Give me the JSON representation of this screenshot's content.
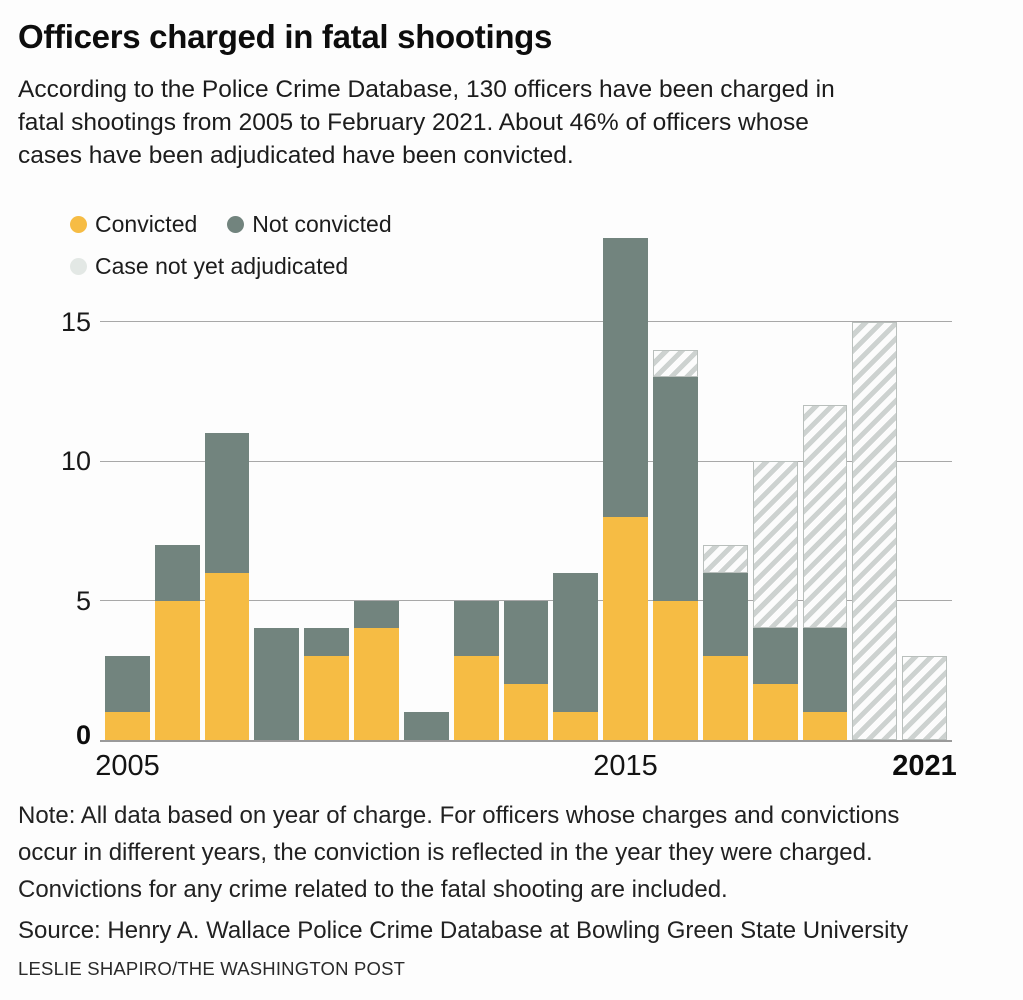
{
  "header": {
    "title": "Officers charged in fatal shootings",
    "subtitle_lines": [
      "According to the Police Crime Database, 130 officers have been charged in",
      "fatal shootings from 2005 to February 2021. About 46% of officers whose",
      "cases have been adjudicated have been convicted."
    ]
  },
  "legend": {
    "items": [
      {
        "label": "Convicted",
        "key": "convicted"
      },
      {
        "label": "Not convicted",
        "key": "not_convicted"
      },
      {
        "label": "Case not yet adjudicated",
        "key": "pending"
      }
    ]
  },
  "colors": {
    "convicted": "#F6BC44",
    "not_convicted": "#72847E",
    "pending_bg": "#FCFCFC",
    "pending_stripe": "#CDD2D0",
    "pending_border": "#B9BFBC",
    "pending_legend_dot": "#E3E8E5",
    "gridline": "#A8A8A8",
    "axis": "#9A9A9A"
  },
  "chart_data": {
    "type": "bar",
    "stacked": true,
    "title": "Officers charged in fatal shootings",
    "x": [
      2005,
      2006,
      2007,
      2008,
      2009,
      2010,
      2011,
      2012,
      2013,
      2014,
      2015,
      2016,
      2017,
      2018,
      2019,
      2020,
      2021
    ],
    "series": [
      {
        "name": "Convicted",
        "key": "convicted",
        "values": [
          1,
          5,
          6,
          0,
          3,
          4,
          0,
          3,
          2,
          1,
          8,
          5,
          3,
          2,
          1,
          0,
          0
        ]
      },
      {
        "name": "Not convicted",
        "key": "not_convicted",
        "values": [
          2,
          2,
          5,
          4,
          1,
          1,
          1,
          2,
          3,
          5,
          10,
          8,
          3,
          2,
          3,
          0,
          0
        ]
      },
      {
        "name": "Case not yet adjudicated",
        "key": "pending",
        "values": [
          0,
          0,
          0,
          0,
          0,
          0,
          0,
          0,
          0,
          0,
          0,
          1,
          1,
          6,
          8,
          15,
          3
        ]
      }
    ],
    "totals_per_year": [
      3,
      7,
      11,
      4,
      4,
      5,
      1,
      5,
      5,
      6,
      18,
      14,
      7,
      10,
      12,
      15,
      3
    ],
    "total_charged": 130,
    "ylim": [
      0,
      18
    ],
    "gridlines": [
      5,
      10,
      15
    ],
    "ytick_labels": [
      "0",
      "5",
      "10",
      "15"
    ],
    "xticks": [
      {
        "index": 0,
        "label": "2005",
        "bold": false
      },
      {
        "index": 10,
        "label": "2015",
        "bold": false
      },
      {
        "index": 16,
        "label": "2021",
        "bold": true
      }
    ],
    "grid": "horizontal",
    "legend_position": "top-left"
  },
  "footer": {
    "note_lines": [
      "Note: All data based on year of charge. For officers whose charges and convictions",
      "occur in different years, the conviction is reflected in the year they were charged.",
      "Convictions for any crime related to the fatal shooting are included."
    ],
    "source": "Source: Henry A. Wallace Police Crime Database at Bowling Green State University",
    "credit": "LESLIE SHAPIRO/THE WASHINGTON POST"
  }
}
